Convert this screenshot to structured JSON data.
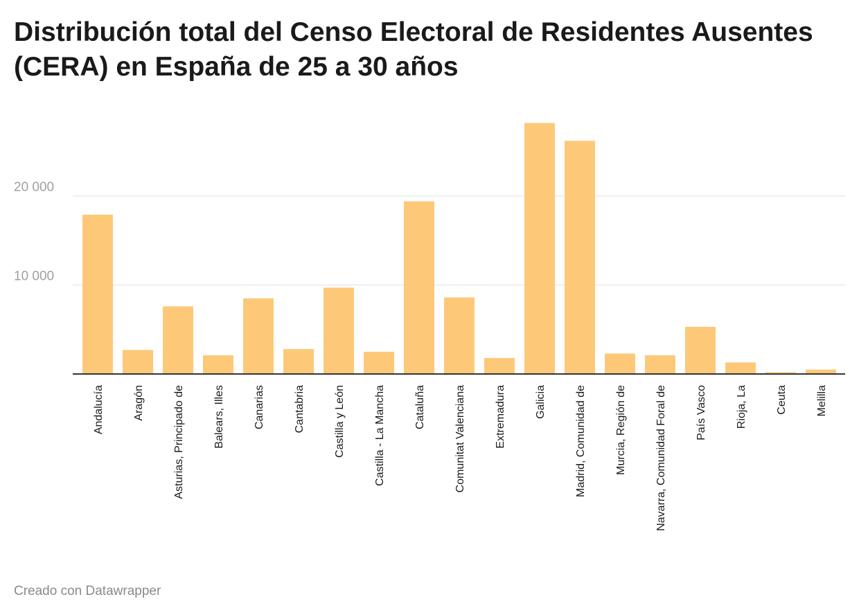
{
  "title": "Distribución total del Censo Electoral de Residentes Ausentes (CERA) en España de 25 a 30 años",
  "footer": "Creado con Datawrapper",
  "chart_data": {
    "type": "bar",
    "title": "Distribución total del Censo Electoral de Residentes Ausentes (CERA) en España de 25 a 30 años",
    "xlabel": "",
    "ylabel": "",
    "ylim": [
      0,
      30000
    ],
    "yticks": [
      {
        "value": 10000,
        "label": "10 000"
      },
      {
        "value": 20000,
        "label": "20 000"
      }
    ],
    "grid": true,
    "bar_color": "#fdc978",
    "categories": [
      "Andalucía",
      "Aragón",
      "Asturias, Principado de",
      "Balears, Illes",
      "Canarias",
      "Cantabria",
      "Castilla y León",
      "Castilla - La Mancha",
      "Cataluña",
      "Comunitat Valenciana",
      "Extremadura",
      "Galicia",
      "Madrid, Comunidad de",
      "Murcia, Región de",
      "Navarra, Comunidad Foral de",
      "País Vasco",
      "Rioja, La",
      "Ceuta",
      "Melilla"
    ],
    "values": [
      17900,
      2700,
      7600,
      2100,
      8500,
      2800,
      9700,
      2500,
      19400,
      8600,
      1800,
      28200,
      26200,
      2300,
      2100,
      5300,
      1300,
      200,
      500
    ]
  }
}
